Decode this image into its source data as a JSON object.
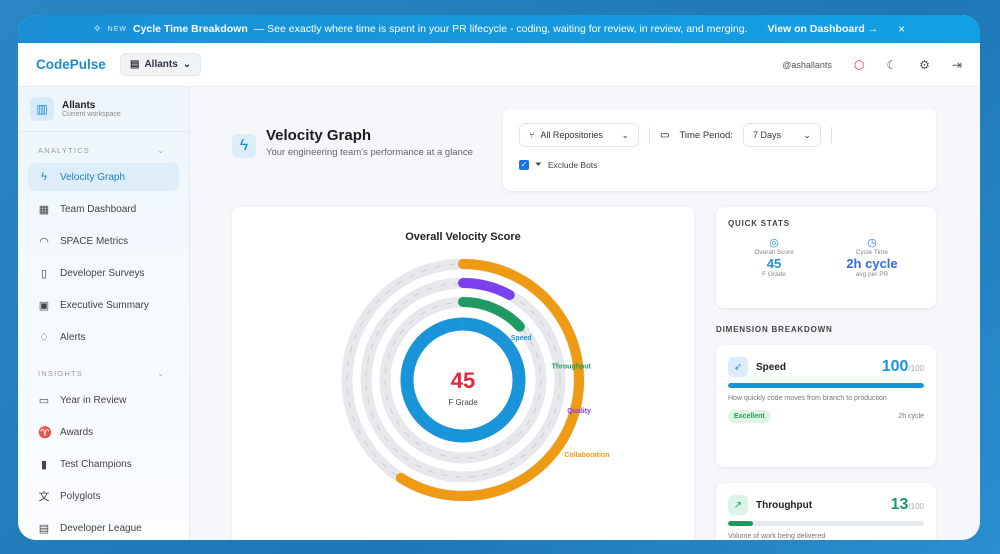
{
  "banner": {
    "badge": "NEW",
    "title": "Cycle Time Breakdown",
    "text": "— See exactly where time is spent in your PR lifecycle - coding, waiting for review, in review, and merging.",
    "link": "View on Dashboard →",
    "close": "×"
  },
  "header": {
    "logo": "CodePulse",
    "workspace": "Allants",
    "user": "@ashallants"
  },
  "sidebar": {
    "workspace_name": "Allants",
    "workspace_sub": "Current workspace",
    "sections": [
      {
        "title": "ANALYTICS",
        "items": [
          {
            "label": "Velocity Graph",
            "icon": "zap"
          },
          {
            "label": "Team Dashboard",
            "icon": "grid"
          },
          {
            "label": "SPACE Metrics",
            "icon": "gauge"
          },
          {
            "label": "Developer Surveys",
            "icon": "clipboard"
          },
          {
            "label": "Executive Summary",
            "icon": "briefcase"
          },
          {
            "label": "Alerts",
            "icon": "bell"
          }
        ]
      },
      {
        "title": "INSIGHTS",
        "items": [
          {
            "label": "Year in Review",
            "icon": "calendar"
          },
          {
            "label": "Awards",
            "icon": "trophy"
          },
          {
            "label": "Test Champions",
            "icon": "test-tube"
          },
          {
            "label": "Polyglots",
            "icon": "translate"
          },
          {
            "label": "Developer League",
            "icon": "table"
          }
        ]
      }
    ]
  },
  "page": {
    "title": "Velocity Graph",
    "subtitle": "Your engineering team's performance at a glance"
  },
  "filters": {
    "repo": "All Repositories",
    "time_label": "Time Period:",
    "time_value": "7 Days",
    "exclude_bots": "Exclude Bots",
    "exclude_checked": true
  },
  "velocity": {
    "title": "Overall Velocity Score",
    "score": "45",
    "grade": "F Grade",
    "score_color": "#e5293b"
  },
  "chart_data": {
    "type": "radial-bar",
    "series": [
      {
        "name": "Speed",
        "value": 100,
        "color": "#1a94d9"
      },
      {
        "name": "Throughput",
        "value": 13,
        "color": "#1f9a63"
      },
      {
        "name": "Quality",
        "value": 8,
        "color": "#7b3ff0"
      },
      {
        "name": "Collaboration",
        "value": 59,
        "color": "#ee9a12"
      }
    ],
    "range": [
      0,
      100
    ]
  },
  "quick_stats": {
    "title": "QUICK STATS",
    "overall_label": "Overall Score",
    "overall_value": "45",
    "overall_sub": "F Grade",
    "cycle_label": "Cycle Time",
    "cycle_value": "2h cycle",
    "cycle_sub": "avg per PR"
  },
  "breakdown": {
    "title": "DIMENSION BREAKDOWN",
    "items": [
      {
        "name": "Speed",
        "score": "100",
        "max": "/100",
        "value": 100,
        "color": "#1a94d9",
        "desc": "How quickly code moves from branch to production",
        "badge": "Excellent",
        "meta": "2h cycle"
      },
      {
        "name": "Throughput",
        "score": "13",
        "max": "/100",
        "value": 13,
        "color": "#1f9a63",
        "desc": "Volume of work being delivered"
      }
    ]
  }
}
